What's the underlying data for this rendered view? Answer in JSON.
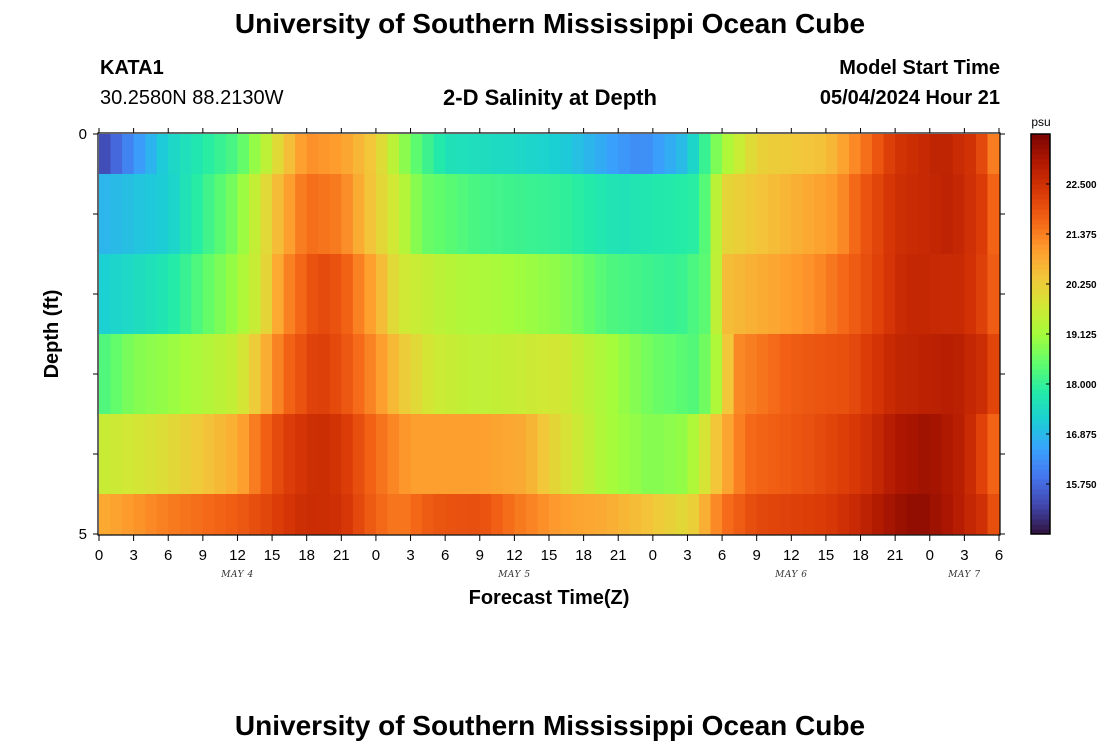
{
  "header": {
    "title": "University of Southern Mississippi Ocean Cube",
    "station": "KATA1",
    "coords": "30.2580N  88.2130W",
    "subtitle": "2-D Salinity at Depth",
    "model_label": "Model Start Time",
    "model_time": "05/04/2024 Hour 21"
  },
  "footer": {
    "title": "University of Southern Mississippi Ocean Cube"
  },
  "colors": {
    "scale": [
      "#30123b",
      "#4145ab",
      "#4675ed",
      "#39a2fc",
      "#1bcfd4",
      "#24eca6",
      "#61fc6c",
      "#a4fc3b",
      "#d1e834",
      "#f3c63a",
      "#fe9b2d",
      "#f36315",
      "#d93806",
      "#b11901",
      "#7a0402"
    ]
  },
  "chart_data": {
    "type": "heatmap",
    "xlabel": "Forecast Time(Z)",
    "ylabel": "Depth (ft)",
    "x_tick_labels": [
      "0",
      "3",
      "6",
      "9",
      "12",
      "15",
      "18",
      "21",
      "0",
      "3",
      "6",
      "9",
      "12",
      "15",
      "18",
      "21",
      "0",
      "3",
      "6",
      "9",
      "12",
      "15",
      "18",
      "21",
      "0",
      "3",
      "6"
    ],
    "x_range_hours": [
      0,
      78
    ],
    "day_labels": [
      {
        "label": "MAY 4",
        "hour": 12
      },
      {
        "label": "MAY 5",
        "hour": 36
      },
      {
        "label": "MAY 6",
        "hour": 60
      },
      {
        "label": "MAY 7",
        "hour": 75
      }
    ],
    "y_tick_labels": [
      "0",
      "5"
    ],
    "ylim": [
      0,
      5
    ],
    "depth_bins_ft": [
      0,
      0.5,
      1.5,
      2.5,
      3.5,
      4.5,
      5
    ],
    "colorbar": {
      "unit": "psu",
      "range": [
        14.625,
        23.625
      ],
      "tick_labels": [
        "22.500",
        "21.375",
        "20.250",
        "19.125",
        "18.000",
        "16.875",
        "15.750"
      ]
    },
    "profiles": [
      {
        "depth": 0.25,
        "points": [
          [
            0,
            15.2
          ],
          [
            3,
            16.3
          ],
          [
            6,
            17.3
          ],
          [
            12,
            18.3
          ],
          [
            14,
            19.2
          ],
          [
            16,
            20.3
          ],
          [
            18,
            21.2
          ],
          [
            21,
            21.0
          ],
          [
            24,
            20.3
          ],
          [
            27,
            18.6
          ],
          [
            30,
            17.6
          ],
          [
            36,
            17.4
          ],
          [
            40,
            17.2
          ],
          [
            44,
            16.6
          ],
          [
            47,
            16.2
          ],
          [
            51,
            17.0
          ],
          [
            54,
            19.1
          ],
          [
            57,
            20.2
          ],
          [
            63,
            20.5
          ],
          [
            66,
            21.4
          ],
          [
            69,
            22.4
          ],
          [
            73,
            22.8
          ],
          [
            76,
            22.4
          ],
          [
            77,
            21.8
          ],
          [
            78,
            21.0
          ]
        ]
      },
      {
        "depth": 1.0,
        "points": [
          [
            0,
            16.8
          ],
          [
            6,
            17.2
          ],
          [
            9,
            18.0
          ],
          [
            12,
            18.8
          ],
          [
            14,
            19.8
          ],
          [
            16,
            20.8
          ],
          [
            18,
            21.6
          ],
          [
            21,
            21.4
          ],
          [
            23,
            20.6
          ],
          [
            26,
            19.6
          ],
          [
            28,
            18.6
          ],
          [
            33,
            18.2
          ],
          [
            40,
            18.0
          ],
          [
            45,
            17.6
          ],
          [
            52,
            17.9
          ],
          [
            53,
            18.8
          ],
          [
            54,
            20.1
          ],
          [
            60,
            20.7
          ],
          [
            64,
            21.1
          ],
          [
            66,
            21.8
          ],
          [
            69,
            22.5
          ],
          [
            74,
            22.8
          ],
          [
            77,
            22.2
          ],
          [
            78,
            21.2
          ]
        ]
      },
      {
        "depth": 2.0,
        "points": [
          [
            0,
            17.2
          ],
          [
            6,
            17.7
          ],
          [
            9,
            18.4
          ],
          [
            12,
            19.1
          ],
          [
            14,
            19.8
          ],
          [
            16,
            21.2
          ],
          [
            19,
            22.1
          ],
          [
            21,
            21.9
          ],
          [
            24,
            20.8
          ],
          [
            26,
            19.8
          ],
          [
            30,
            19.4
          ],
          [
            36,
            19.1
          ],
          [
            40,
            18.9
          ],
          [
            44,
            18.3
          ],
          [
            50,
            18.0
          ],
          [
            53,
            18.5
          ],
          [
            54,
            20.5
          ],
          [
            62,
            21.2
          ],
          [
            66,
            21.9
          ],
          [
            70,
            22.7
          ],
          [
            75,
            22.6
          ],
          [
            77,
            22.1
          ],
          [
            78,
            21.5
          ]
        ]
      },
      {
        "depth": 3.0,
        "points": [
          [
            0,
            18.2
          ],
          [
            3,
            18.8
          ],
          [
            6,
            19.0
          ],
          [
            12,
            19.6
          ],
          [
            14,
            20.5
          ],
          [
            16,
            21.6
          ],
          [
            19,
            22.3
          ],
          [
            21,
            22.0
          ],
          [
            24,
            21.2
          ],
          [
            26,
            20.4
          ],
          [
            29,
            19.7
          ],
          [
            33,
            19.5
          ],
          [
            40,
            19.8
          ],
          [
            44,
            19.2
          ],
          [
            48,
            18.6
          ],
          [
            52,
            18.3
          ],
          [
            54,
            19.6
          ],
          [
            55,
            21.2
          ],
          [
            60,
            21.8
          ],
          [
            65,
            22.0
          ],
          [
            69,
            22.7
          ],
          [
            74,
            22.9
          ],
          [
            77,
            22.5
          ],
          [
            78,
            21.8
          ]
        ]
      },
      {
        "depth": 4.0,
        "points": [
          [
            0,
            19.6
          ],
          [
            6,
            20.0
          ],
          [
            12,
            20.8
          ],
          [
            14,
            21.6
          ],
          [
            16,
            22.2
          ],
          [
            19,
            22.6
          ],
          [
            21,
            22.4
          ],
          [
            24,
            21.6
          ],
          [
            27,
            21.0
          ],
          [
            33,
            21.0
          ],
          [
            37,
            20.8
          ],
          [
            40,
            20.0
          ],
          [
            44,
            19.2
          ],
          [
            48,
            18.8
          ],
          [
            51,
            19.0
          ],
          [
            54,
            20.7
          ],
          [
            56,
            21.6
          ],
          [
            62,
            22.0
          ],
          [
            66,
            22.4
          ],
          [
            69,
            23.0
          ],
          [
            72,
            23.2
          ],
          [
            75,
            22.8
          ],
          [
            77,
            22.0
          ],
          [
            78,
            21.4
          ]
        ]
      },
      {
        "depth": 4.75,
        "points": [
          [
            0,
            20.8
          ],
          [
            6,
            21.4
          ],
          [
            12,
            21.8
          ],
          [
            15,
            22.2
          ],
          [
            18,
            22.6
          ],
          [
            21,
            22.5
          ],
          [
            24,
            21.7
          ],
          [
            26,
            21.4
          ],
          [
            29,
            21.9
          ],
          [
            33,
            22.0
          ],
          [
            36,
            21.5
          ],
          [
            40,
            21.0
          ],
          [
            44,
            20.8
          ],
          [
            48,
            20.4
          ],
          [
            51,
            20.0
          ],
          [
            54,
            21.5
          ],
          [
            57,
            22.1
          ],
          [
            63,
            22.3
          ],
          [
            66,
            22.7
          ],
          [
            69,
            23.2
          ],
          [
            71,
            23.4
          ],
          [
            74,
            23.0
          ],
          [
            77,
            22.4
          ],
          [
            78,
            21.6
          ]
        ]
      }
    ]
  }
}
